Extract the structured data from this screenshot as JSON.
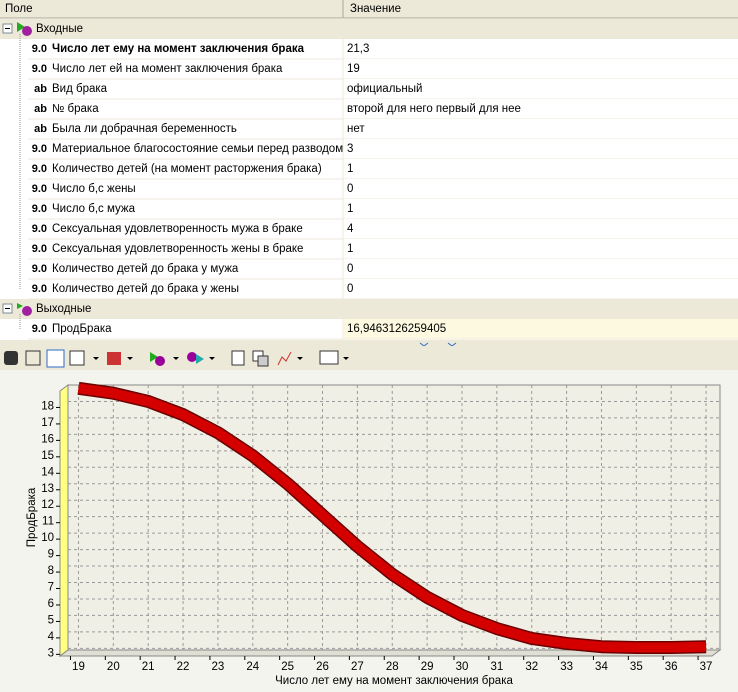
{
  "grid": {
    "headers": [
      "Поле",
      "Значение"
    ],
    "groups": [
      {
        "label": "Входные",
        "rows": [
          {
            "type": "9.0",
            "name": "Число лет ему на момент заключения брака",
            "value": "21,3"
          },
          {
            "type": "9.0",
            "name": "Число лет ей на момент заключения брака",
            "value": "19"
          },
          {
            "type": "ab",
            "name": "Вид брака",
            "value": "официальный"
          },
          {
            "type": "ab",
            "name": "№ брака",
            "value": "второй для него первый для нее"
          },
          {
            "type": "ab",
            "name": "Была ли добрачная беременность",
            "value": "нет"
          },
          {
            "type": "9.0",
            "name": "Материальное благосостояние семьи перед разводом",
            "value": "3"
          },
          {
            "type": "9.0",
            "name": "Количество детей (на момент расторжения брака)",
            "value": "1"
          },
          {
            "type": "9.0",
            "name": "Число б,с жены",
            "value": "0"
          },
          {
            "type": "9.0",
            "name": "Число б,с мужа",
            "value": "1"
          },
          {
            "type": "9.0",
            "name": "Сексуальная удовлетворенность мужа в браке",
            "value": "4"
          },
          {
            "type": "9.0",
            "name": "Сексуальная удовлетворенность жены в браке",
            "value": "1"
          },
          {
            "type": "9.0",
            "name": "Количество детей до брака у мужа",
            "value": "0"
          },
          {
            "type": "9.0",
            "name": "Количество детей до брака у жены",
            "value": "0"
          }
        ]
      },
      {
        "label": "Выходные",
        "rows": [
          {
            "type": "9.0",
            "name": "ПродБрака",
            "value": "16,9463126259405"
          }
        ]
      }
    ]
  },
  "chart_data": {
    "type": "line",
    "x_label": "Число лет ему на момент заключения брака",
    "y_label": "ПродБрака",
    "x": [
      19,
      20,
      21,
      22,
      23,
      24,
      25,
      26,
      27,
      28,
      29,
      30,
      31,
      32,
      33,
      34,
      35,
      36,
      37
    ],
    "series": [
      {
        "name": "ПродБрака",
        "color": "#d40000",
        "values": [
          18.8,
          18.5,
          18.0,
          17.2,
          16.1,
          14.7,
          13.0,
          11.1,
          9.2,
          7.5,
          6.1,
          5.0,
          4.2,
          3.6,
          3.3,
          3.1,
          3.05,
          3.05,
          3.1
        ]
      }
    ],
    "xlim": [
      18.7,
      37.4
    ],
    "xticks": [
      19,
      20,
      21,
      22,
      23,
      24,
      25,
      26,
      27,
      28,
      29,
      30,
      31,
      32,
      33,
      34,
      35,
      36,
      37
    ],
    "ylim": [
      2.9,
      19
    ],
    "yticks": [
      3,
      4,
      5,
      6,
      7,
      8,
      9,
      10,
      11,
      12,
      13,
      14,
      15,
      16,
      17,
      18
    ],
    "grid": true
  }
}
